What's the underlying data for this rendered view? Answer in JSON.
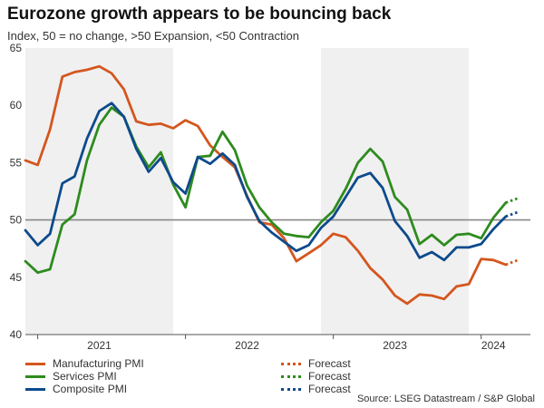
{
  "title": "Eurozone growth appears to be bouncing back",
  "subtitle": "Index, 50 = no change, >50 Expansion, <50 Contraction",
  "source": "Source: LSEG Datastream / S&P Global",
  "chart_data": {
    "type": "line",
    "ylim": [
      40,
      65
    ],
    "yticks": [
      40,
      45,
      50,
      55,
      60,
      65
    ],
    "reference_line": 50,
    "x_range": [
      "2020-12",
      "2024-05"
    ],
    "year_labels": [
      {
        "label": "2021",
        "month": "2021-06"
      },
      {
        "label": "2022",
        "month": "2022-06"
      },
      {
        "label": "2023",
        "month": "2023-06"
      },
      {
        "label": "2024",
        "month": "2024-02"
      }
    ],
    "shaded_years": [
      {
        "start": "2020-12",
        "end": "2021-12"
      },
      {
        "start": "2022-12",
        "end": "2023-12"
      }
    ],
    "grid": false,
    "legend_position": "bottom-left",
    "series": [
      {
        "name": "Manufacturing PMI",
        "color": "#d4561e",
        "start": "2020-12",
        "values": [
          55.2,
          54.8,
          57.9,
          62.5,
          62.9,
          63.1,
          63.4,
          62.8,
          61.4,
          58.6,
          58.3,
          58.4,
          58.0,
          58.7,
          58.2,
          56.5,
          55.5,
          54.6,
          52.1,
          49.8,
          49.6,
          48.4,
          46.4,
          47.1,
          47.8,
          48.8,
          48.5,
          47.3,
          45.8,
          44.8,
          43.4,
          42.7,
          43.5,
          43.4,
          43.1,
          44.2,
          44.4,
          46.6,
          46.5,
          46.1
        ],
        "forecast": {
          "name": "Forecast",
          "values": [
            46.1,
            46.5
          ]
        }
      },
      {
        "name": "Services PMI",
        "color": "#2e8b1e",
        "start": "2020-12",
        "values": [
          46.4,
          45.4,
          45.7,
          49.6,
          50.5,
          55.2,
          58.3,
          59.8,
          59.0,
          56.4,
          54.6,
          55.9,
          53.1,
          51.1,
          55.5,
          55.6,
          57.7,
          56.1,
          53.0,
          51.1,
          49.8,
          48.8,
          48.6,
          48.5,
          49.8,
          50.8,
          52.7,
          55.0,
          56.2,
          55.1,
          52.0,
          50.9,
          47.9,
          48.7,
          47.8,
          48.7,
          48.8,
          48.4,
          50.2,
          51.5
        ],
        "forecast": {
          "name": "Forecast",
          "values": [
            51.5,
            51.9
          ]
        }
      },
      {
        "name": "Composite PMI",
        "color": "#0d4a8c",
        "start": "2020-12",
        "values": [
          49.1,
          47.8,
          48.8,
          53.2,
          53.8,
          57.1,
          59.5,
          60.2,
          59.0,
          56.2,
          54.2,
          55.4,
          53.3,
          52.3,
          55.5,
          54.9,
          55.8,
          54.8,
          52.0,
          49.9,
          48.9,
          48.1,
          47.3,
          47.8,
          49.3,
          50.3,
          52.0,
          53.7,
          54.1,
          52.8,
          49.9,
          48.6,
          46.7,
          47.2,
          46.5,
          47.6,
          47.6,
          47.9,
          49.2,
          50.3
        ],
        "forecast": {
          "name": "Forecast",
          "values": [
            50.3,
            50.7
          ]
        }
      }
    ]
  }
}
